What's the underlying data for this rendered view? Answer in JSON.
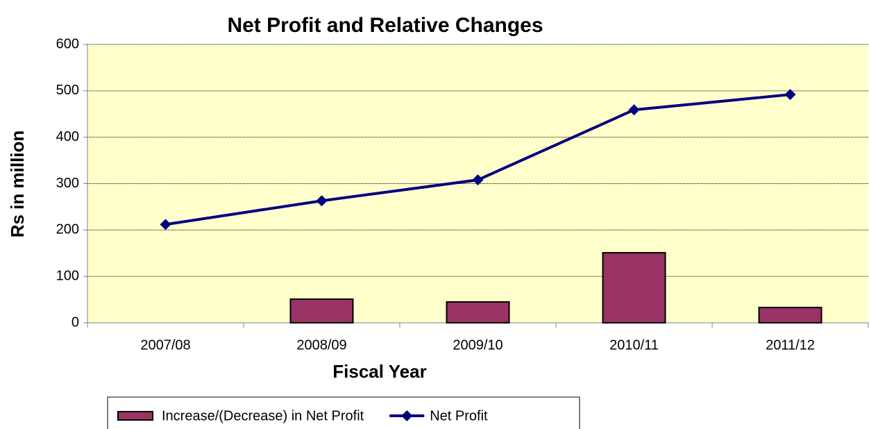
{
  "chart_data": {
    "type": "combo",
    "title": "Net Profit and Relative Changes",
    "x_label": "Fiscal Year",
    "y_label": "Rs in million",
    "categories": [
      "2007/08",
      "2008/09",
      "2009/10",
      "2010/11",
      "2011/12"
    ],
    "series": [
      {
        "name": "Increase/(Decrease) in Net Profit",
        "type": "bar",
        "color": "#993366",
        "values": [
          null,
          51,
          45,
          151,
          33
        ]
      },
      {
        "name": "Net Profit",
        "type": "line",
        "color": "#000080",
        "values": [
          212,
          263,
          308,
          459,
          492
        ]
      }
    ],
    "ylim": [
      0,
      600
    ],
    "yticks": [
      0,
      100,
      200,
      300,
      400,
      500,
      600
    ],
    "grid": true,
    "legend": "bottom",
    "background": "#FFFFCC"
  }
}
